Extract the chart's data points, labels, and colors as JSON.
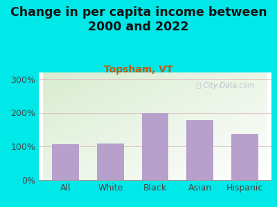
{
  "title": "Change in per capita income between\n2000 and 2022",
  "subtitle": "Topsham, VT",
  "categories": [
    "All",
    "White",
    "Black",
    "Asian",
    "Hispanic"
  ],
  "values": [
    107,
    109,
    198,
    178,
    137
  ],
  "bar_color": "#b8a0cc",
  "title_fontsize": 12.5,
  "subtitle_fontsize": 10,
  "subtitle_color": "#cc5500",
  "tick_fontsize": 9,
  "yticks": [
    0,
    100,
    200,
    300
  ],
  "ylim": [
    0,
    320
  ],
  "background_outer": "#00e8e8",
  "background_plot_topleft": "#d8ecd0",
  "background_plot_white": "#ffffff",
  "grid_color": "#ddb8b8",
  "watermark": " City-Data.com",
  "watermark_color": "#b0b8c8"
}
